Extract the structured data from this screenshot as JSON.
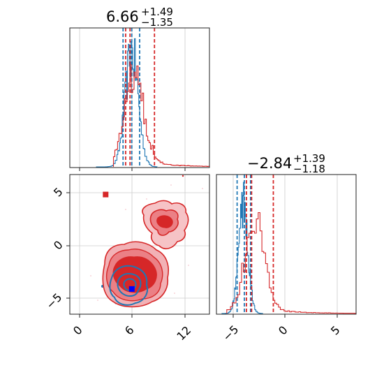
{
  "chart_data": [
    {
      "panel": "marginal-x",
      "type": "histogram",
      "title": {
        "value": "6.66",
        "plus": "+1.49",
        "minus": "−1.35"
      },
      "xlim": [
        -1.5,
        14.5
      ],
      "grid": true,
      "series": [
        {
          "color": "#1f77b4",
          "quantiles": [
            4.6,
            5.6,
            6.5
          ],
          "peak": 5.6,
          "width": 0.75,
          "xrange": [
            1.5,
            8.5
          ]
        },
        {
          "color": "#d62728",
          "quantiles": [
            4.9,
            5.4,
            8.2
          ],
          "peak": 5.9,
          "width": 1.1,
          "xrange": [
            3.5,
            14.5
          ]
        }
      ]
    },
    {
      "panel": "marginal-y",
      "type": "histogram",
      "title": {
        "value": "−2.84",
        "plus": "+1.39",
        "minus": "−1.18"
      },
      "xlim": [
        -7.0,
        6.5
      ],
      "xticks": [
        -5,
        0,
        5
      ],
      "xtick_labels": [
        "−5",
        "0",
        "5"
      ],
      "grid": true,
      "series": [
        {
          "color": "#1f77b4",
          "quantiles": [
            -5.0,
            -4.3,
            -3.7
          ],
          "peak": -4.4,
          "width": 0.45,
          "xrange": [
            -6.5,
            -2.5
          ]
        },
        {
          "color": "#d62728",
          "quantiles": [
            -4.1,
            -3.6,
            -1.5
          ],
          "peak": -3.3,
          "width": 0.9,
          "xrange": [
            -6.0,
            6.5
          ]
        }
      ]
    },
    {
      "panel": "joint",
      "type": "contour",
      "xlim": [
        -1.5,
        14.5
      ],
      "ylim": [
        -6.5,
        6.8
      ],
      "xticks": [
        0,
        6,
        12
      ],
      "yticks": [
        -5,
        0,
        5
      ],
      "xtick_labels": [
        "0",
        "6",
        "12"
      ],
      "ytick_labels": [
        "−5",
        "0",
        "5"
      ],
      "grid": true,
      "series": [
        {
          "color": "#1f77b4",
          "center": [
            5.6,
            -3.9
          ],
          "size": [
            1.8,
            1.3
          ]
        },
        {
          "color": "#d62728",
          "center": [
            5.8,
            -2.5
          ],
          "size": [
            3.8,
            3.0
          ]
        },
        {
          "color": "#d62728",
          "center": [
            9.2,
            1.9
          ],
          "size": [
            2.0,
            1.5
          ]
        }
      ],
      "markers": [
        {
          "color": "#0000ff",
          "x": 5.6,
          "y": -4.1
        },
        {
          "color": "#d62728",
          "x": 9.5,
          "y": 2.1
        },
        {
          "color": "#d62728",
          "x": 2.6,
          "y": 4.9
        }
      ]
    }
  ]
}
